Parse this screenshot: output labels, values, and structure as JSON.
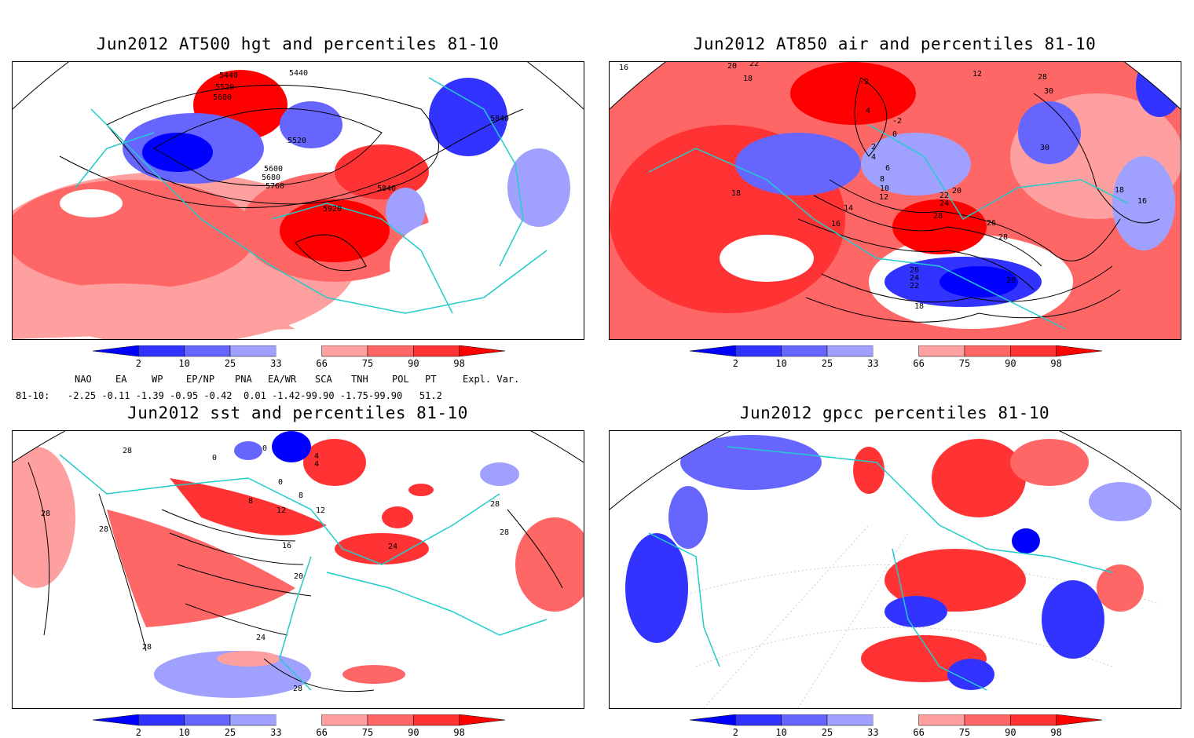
{
  "panels": [
    {
      "title": "Jun2012 AT500 hgt and percentiles 81-10",
      "contour_labels": [
        "5440",
        "5520",
        "5600",
        "5440",
        "5840",
        "5520",
        "5600",
        "5680",
        "5760",
        "5840",
        "5920"
      ]
    },
    {
      "title": "Jun2012 AT850 air and percentiles 81-10",
      "contour_labels": [
        "16",
        "20",
        "22",
        "18",
        "-2",
        "12",
        "28",
        "30",
        "4",
        "-2",
        "0",
        "2",
        "4",
        "6",
        "8",
        "10",
        "12",
        "18",
        "14",
        "16",
        "20",
        "22",
        "24",
        "28",
        "26",
        "28",
        "30",
        "18",
        "16",
        "26",
        "24",
        "22",
        "20",
        "18"
      ]
    },
    {
      "title": "Jun2012 sst and percentiles 81-10",
      "contour_labels": [
        "28",
        "0",
        "0",
        "4",
        "0",
        "4",
        "8",
        "8",
        "12",
        "12",
        "28",
        "28",
        "16",
        "20",
        "24",
        "28",
        "28",
        "28",
        "24",
        "28"
      ]
    },
    {
      "title": "Jun2012 gpcc percentiles 81-10",
      "contour_labels": []
    }
  ],
  "colorbar": {
    "labels": [
      "2",
      "10",
      "25",
      "33",
      "66",
      "75",
      "90",
      "98"
    ],
    "colors": [
      "#0000ff",
      "#3333ff",
      "#6666ff",
      "#a0a0ff",
      "#ffffff",
      "#ffa0a0",
      "#ff6666",
      "#ff3333",
      "#ff0000"
    ]
  },
  "indices": {
    "headers": [
      "NAO",
      "EA",
      "WP",
      "EP/NP",
      "PNA",
      "EA/WR",
      "SCA",
      "TNH",
      "POL",
      "PT",
      "Expl. Var."
    ],
    "row_label": "81-10:",
    "values": "-2.25 -0.11 -1.39 -0.95 -0.42  0.01 -1.42-99.90 -1.75-99.90   51.2"
  }
}
